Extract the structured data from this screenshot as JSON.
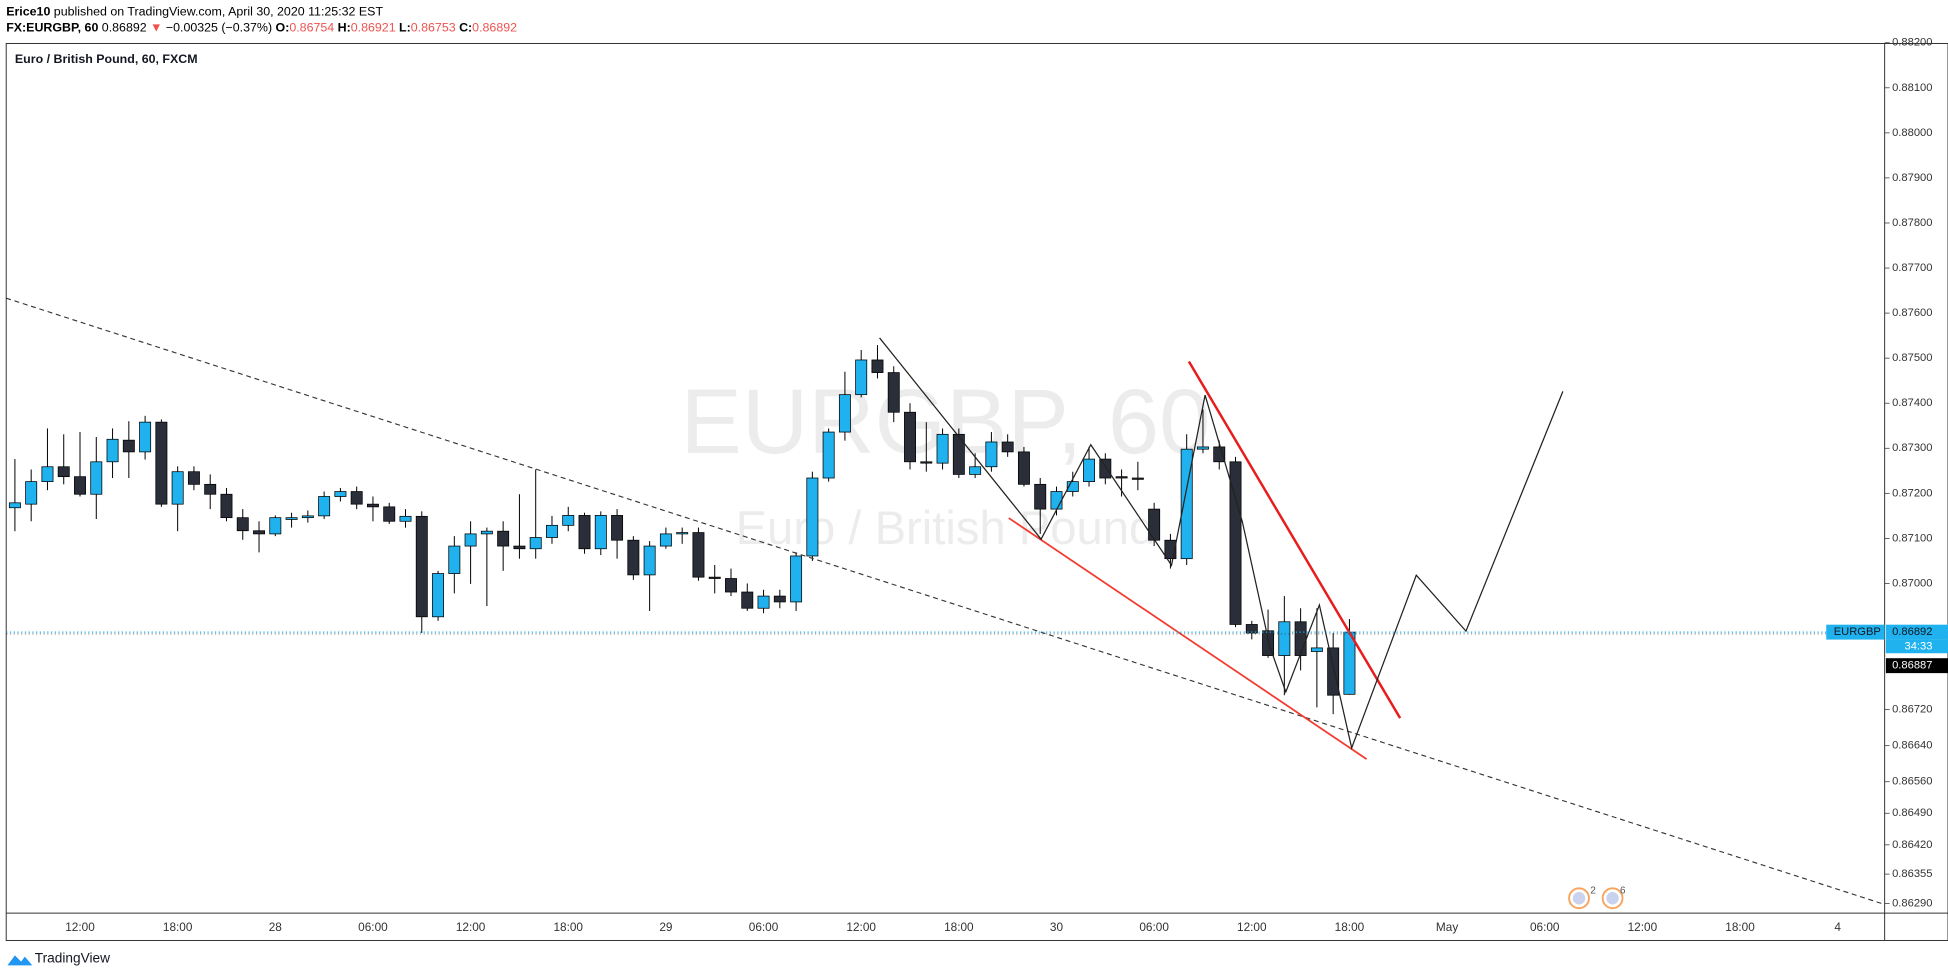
{
  "header": {
    "user": "Erice10",
    "published": "published on TradingView.com, April 30, 2020 11:25:32 EST",
    "symbol": "FX:EURGBP, 60",
    "price": "0.86892",
    "arrow": "▼",
    "change": "−0.00325 (−0.37%)",
    "ohlc": [
      {
        "label": "O:",
        "value": "0.86754"
      },
      {
        "label": "H:",
        "value": "0.86921"
      },
      {
        "label": "L:",
        "value": "0.86753"
      },
      {
        "label": "C:",
        "value": "0.86892"
      }
    ]
  },
  "chart_data": {
    "type": "candlestick",
    "legend": "Euro / British Pound, 60, FXCM",
    "watermark": "EURGBP, 60",
    "watermark_sub": "Euro / British Pound",
    "up_color": "#1fb2ee",
    "down_color": "#2a2e39",
    "categories": [
      null,
      null,
      null,
      null,
      "12:00",
      null,
      null,
      null,
      null,
      null,
      "18:00",
      null,
      null,
      null,
      null,
      null,
      "28",
      null,
      null,
      null,
      null,
      null,
      "06:00",
      null,
      null,
      null,
      null,
      null,
      "12:00",
      null,
      null,
      null,
      null,
      null,
      "18:00",
      null,
      null,
      null,
      null,
      null,
      "29",
      null,
      null,
      null,
      null,
      null,
      "06:00",
      null,
      null,
      null,
      null,
      null,
      "12:00",
      null,
      null,
      null,
      null,
      null,
      "18:00",
      null,
      null,
      null,
      null,
      null,
      "30",
      null,
      null,
      null,
      null,
      null,
      "06:00",
      null,
      null,
      null,
      null,
      null,
      "12:00",
      null,
      null,
      null,
      null,
      null,
      "18:00",
      null,
      null,
      null,
      null,
      null,
      "May",
      null,
      null,
      null,
      null,
      null,
      "06:00",
      null,
      null,
      null,
      null,
      null,
      "12:00",
      null,
      null,
      null,
      null,
      null,
      "18:00",
      null,
      null,
      null,
      null,
      null,
      "4",
      null,
      null
    ],
    "open": [
      0.87168,
      0.87176,
      0.87226,
      0.87259,
      0.87237,
      0.87198,
      0.8727,
      0.87318,
      0.87292,
      0.87358,
      0.87176,
      0.87248,
      0.8722,
      0.87198,
      0.87146,
      0.87117,
      0.8711,
      0.87142,
      0.87146,
      0.8715,
      0.87193,
      0.87204,
      0.87176,
      0.8717,
      0.87138,
      0.87149,
      0.86926,
      0.87022,
      0.87083,
      0.8711,
      0.87116,
      0.87083,
      0.87077,
      0.87102,
      0.87129,
      0.87151,
      0.87077,
      0.87151,
      0.87096,
      0.87019,
      0.87083,
      0.8711,
      0.87113,
      0.87014,
      0.87011,
      0.86981,
      0.86945,
      0.86972,
      0.86959,
      0.87061,
      0.87234,
      0.87336,
      0.87419,
      0.87496,
      0.87468,
      0.8738,
      0.8727,
      0.87267,
      0.87331,
      0.87242,
      0.87259,
      0.87314,
      0.87292,
      0.8722,
      0.87165,
      0.87204,
      0.87226,
      0.87276,
      0.87237,
      0.87234,
      0.87165,
      0.87096,
      0.87055,
      0.87298,
      0.87303,
      0.8727,
      0.86909,
      0.86895,
      0.8684,
      0.86915,
      0.86849,
      0.86857,
      0.86754,
      null,
      null,
      null,
      null,
      null,
      null,
      null,
      null,
      null,
      null,
      null,
      null,
      null,
      null,
      null,
      null,
      null,
      null,
      null,
      null,
      null,
      null,
      null,
      null,
      null,
      null,
      null,
      null,
      null,
      null,
      null,
      null
    ],
    "high": [
      0.87276,
      0.87253,
      0.87344,
      0.87331,
      0.87336,
      0.87325,
      0.87344,
      0.8736,
      0.87372,
      0.87364,
      0.8726,
      0.8726,
      0.87242,
      0.87212,
      0.87165,
      0.87138,
      0.87151,
      0.87157,
      0.87162,
      0.87204,
      0.87212,
      0.87215,
      0.87193,
      0.87179,
      0.87165,
      0.8716,
      0.87028,
      0.87105,
      0.87138,
      0.87124,
      0.87138,
      0.87198,
      0.87253,
      0.8715,
      0.8717,
      0.87157,
      0.8716,
      0.87165,
      0.87105,
      0.87094,
      0.87124,
      0.87124,
      0.87124,
      0.87041,
      0.87033,
      0.87,
      0.86986,
      0.86986,
      0.87069,
      0.87248,
      0.87344,
      0.8747,
      0.87518,
      0.87529,
      0.87482,
      0.874,
      0.87358,
      0.87344,
      0.87344,
      0.87289,
      0.87336,
      0.87331,
      0.87303,
      0.87234,
      0.87215,
      0.87248,
      0.87303,
      0.87289,
      0.87253,
      0.8727,
      0.87179,
      0.8711,
      0.87331,
      0.87386,
      0.87317,
      0.87281,
      0.86917,
      0.86942,
      0.86972,
      0.86945,
      0.86945,
      0.8689,
      0.86921,
      null,
      null,
      null,
      null,
      null,
      null,
      null,
      null,
      null,
      null,
      null,
      null,
      null,
      null,
      null,
      null,
      null,
      null,
      null,
      null,
      null,
      null,
      null,
      null,
      null,
      null,
      null,
      null,
      null,
      null,
      null,
      null
    ],
    "low": [
      0.87116,
      0.87138,
      0.87207,
      0.8722,
      0.87193,
      0.87143,
      0.87234,
      0.87234,
      0.87275,
      0.8717,
      0.87116,
      0.87207,
      0.87165,
      0.87138,
      0.87097,
      0.87069,
      0.87105,
      0.87124,
      0.87135,
      0.87143,
      0.87182,
      0.87165,
      0.87138,
      0.87132,
      0.87124,
      0.8689,
      0.86917,
      0.86978,
      0.86999,
      0.8695,
      0.87028,
      0.87055,
      0.87055,
      0.87088,
      0.87116,
      0.87066,
      0.87063,
      0.87055,
      0.87008,
      0.86939,
      0.87077,
      0.87088,
      0.87006,
      0.86978,
      0.86972,
      0.86939,
      0.86934,
      0.86945,
      0.86939,
      0.8705,
      0.87226,
      0.87317,
      0.87413,
      0.87455,
      0.87358,
      0.87253,
      0.87248,
      0.87253,
      0.87234,
      0.87234,
      0.87248,
      0.87281,
      0.87215,
      0.8711,
      0.87151,
      0.87193,
      0.87215,
      0.8722,
      0.87193,
      0.87207,
      0.87083,
      0.87033,
      0.87041,
      0.87289,
      0.87253,
      0.86903,
      0.86876,
      0.86835,
      0.86752,
      0.86807,
      0.86725,
      0.8671,
      0.86753,
      null,
      null,
      null,
      null,
      null,
      null,
      null,
      null,
      null,
      null,
      null,
      null,
      null,
      null,
      null,
      null,
      null,
      null,
      null,
      null,
      null,
      null,
      null,
      null,
      null,
      null,
      null,
      null,
      null,
      null,
      null,
      null
    ],
    "close": [
      0.87179,
      0.87226,
      0.87259,
      0.87237,
      0.87198,
      0.8727,
      0.8732,
      0.87292,
      0.87358,
      0.87176,
      0.87248,
      0.8722,
      0.87198,
      0.87146,
      0.87117,
      0.8711,
      0.87146,
      0.87146,
      0.8715,
      0.87193,
      0.87204,
      0.87176,
      0.8717,
      0.87138,
      0.87149,
      0.86926,
      0.87022,
      0.87083,
      0.8711,
      0.87116,
      0.87083,
      0.87077,
      0.87102,
      0.87129,
      0.87151,
      0.87077,
      0.87151,
      0.87096,
      0.87019,
      0.87083,
      0.8711,
      0.87113,
      0.87014,
      0.87011,
      0.86981,
      0.86945,
      0.86972,
      0.86959,
      0.87061,
      0.87234,
      0.87336,
      0.87419,
      0.87496,
      0.87468,
      0.8738,
      0.8727,
      0.87267,
      0.87331,
      0.87242,
      0.87259,
      0.87314,
      0.87292,
      0.8722,
      0.87165,
      0.87204,
      0.87226,
      0.87276,
      0.87234,
      0.87234,
      0.87231,
      0.87096,
      0.87055,
      0.87298,
      0.87303,
      0.8727,
      0.86909,
      0.8689,
      0.8684,
      0.86915,
      0.8684,
      0.86857,
      0.86752,
      0.86892,
      null,
      null,
      null,
      null,
      null,
      null,
      null,
      null,
      null,
      null,
      null,
      null,
      null,
      null,
      null,
      null,
      null,
      null,
      null,
      null,
      null,
      null,
      null,
      null,
      null,
      null,
      null,
      null,
      null,
      null,
      null,
      null
    ],
    "ylim": [
      0.8627,
      0.882
    ],
    "yticks": [
      {
        "value": 0.882,
        "label": "0.88200"
      },
      {
        "value": 0.881,
        "label": "0.88100"
      },
      {
        "value": 0.88,
        "label": "0.88000"
      },
      {
        "value": 0.879,
        "label": "0.87900"
      },
      {
        "value": 0.878,
        "label": "0.87800"
      },
      {
        "value": 0.877,
        "label": "0.87700"
      },
      {
        "value": 0.876,
        "label": "0.87600"
      },
      {
        "value": 0.875,
        "label": "0.87500"
      },
      {
        "value": 0.874,
        "label": "0.87400"
      },
      {
        "value": 0.873,
        "label": "0.87300"
      },
      {
        "value": 0.872,
        "label": "0.87200"
      },
      {
        "value": 0.871,
        "label": "0.87100"
      },
      {
        "value": 0.87,
        "label": "0.87000"
      },
      {
        "value": 0.8672,
        "label": "0.86720"
      },
      {
        "value": 0.8664,
        "label": "0.86640"
      },
      {
        "value": 0.8656,
        "label": "0.86560"
      },
      {
        "value": 0.8649,
        "label": "0.86490"
      },
      {
        "value": 0.8642,
        "label": "0.86420"
      },
      {
        "value": 0.86355,
        "label": "0.86355"
      },
      {
        "value": 0.8629,
        "label": "0.86290"
      }
    ],
    "last_price": 0.86892,
    "last_tag": "EURGBP",
    "countdown": "34:33",
    "bid_label": "0.86887",
    "events": [
      "2",
      "6"
    ]
  },
  "footer": "TradingView"
}
